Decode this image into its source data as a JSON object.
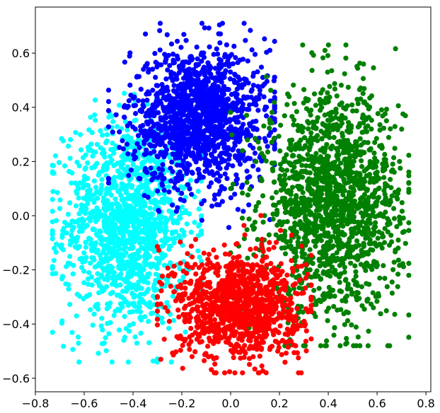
{
  "chart_data": {
    "type": "scatter",
    "title": "",
    "xlabel": "",
    "ylabel": "",
    "xlim": [
      -0.8,
      0.82
    ],
    "ylim": [
      -0.65,
      0.77
    ],
    "grid": false,
    "legend": "none",
    "x_ticks": [
      -0.8,
      -0.6,
      -0.4,
      -0.2,
      0.0,
      0.2,
      0.4,
      0.6,
      0.8
    ],
    "x_tick_labels": [
      "−0.8",
      "−0.6",
      "−0.4",
      "−0.2",
      "0.0",
      "0.2",
      "0.4",
      "0.6",
      "0.8"
    ],
    "y_ticks": [
      -0.6,
      -0.4,
      -0.2,
      0.0,
      0.2,
      0.4,
      0.6
    ],
    "y_tick_labels": [
      "−0.6",
      "−0.4",
      "−0.2",
      "0.0",
      "0.2",
      "0.4",
      "0.6"
    ],
    "series": [
      {
        "color": "#00ffff",
        "center": [
          -0.42,
          -0.03
        ],
        "spread": [
          0.13,
          0.19
        ],
        "x_range": [
          -0.73,
          -0.12
        ],
        "y_range": [
          -0.54,
          0.48
        ],
        "n_points": 1400
      },
      {
        "color": "#0000ff",
        "center": [
          -0.13,
          0.36
        ],
        "spread": [
          0.14,
          0.13
        ],
        "x_range": [
          -0.5,
          0.18
        ],
        "y_range": [
          -0.07,
          0.71
        ],
        "n_points": 1400
      },
      {
        "color": "#008000",
        "center": [
          0.42,
          0.05
        ],
        "spread": [
          0.14,
          0.2
        ],
        "x_range": [
          0.0,
          0.73
        ],
        "y_range": [
          -0.48,
          0.63
        ],
        "n_points": 1600
      },
      {
        "color": "#ff0000",
        "center": [
          0.03,
          -0.33
        ],
        "spread": [
          0.13,
          0.1
        ],
        "x_range": [
          -0.3,
          0.33
        ],
        "y_range": [
          -0.58,
          0.03
        ],
        "n_points": 1100
      }
    ]
  }
}
